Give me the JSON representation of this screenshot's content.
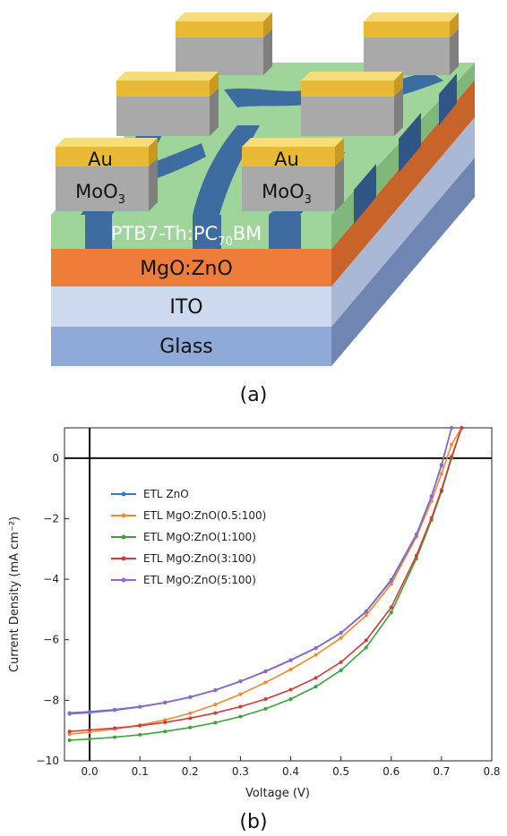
{
  "panel_a": {
    "caption": "(a)",
    "layers": {
      "au1": "Au",
      "moo3_1_base": "MoO",
      "moo3_1_sub": "3",
      "au2": "Au",
      "moo3_2_base": "MoO",
      "moo3_2_sub": "3",
      "active_pre": "PTB7-Th:PC",
      "active_sub": "70",
      "active_post": "BM",
      "etl": "MgO:ZnO",
      "ito": "ITO",
      "glass": "Glass"
    },
    "colors": {
      "au": "#e8b934",
      "moo3": "#a9a9a9",
      "active_green": "#9fd59a",
      "active_blue": "#3d6da0",
      "etl": "#ee7d3a",
      "ito": "#cdd9ec",
      "glass": "#8faad6"
    }
  },
  "panel_b": {
    "caption": "(b)",
    "chart_data": {
      "type": "line",
      "title": "",
      "xlabel": "Voltage (V)",
      "ylabel": "Current Density (mA cm⁻²)",
      "xlim": [
        -0.05,
        0.8
      ],
      "ylim": [
        -10,
        1
      ],
      "xticks": [
        0.0,
        0.1,
        0.2,
        0.3,
        0.4,
        0.5,
        0.6,
        0.7,
        0.8
      ],
      "xtick_labels": [
        "0.0",
        "0.1",
        "0.2",
        "0.3",
        "0.4",
        "0.5",
        "0.6",
        "0.7",
        "0.8"
      ],
      "yticks": [
        0,
        -2,
        -4,
        -6,
        -8,
        -10
      ],
      "ytick_labels": [
        "0",
        "−2",
        "−4",
        "−6",
        "−8",
        "−10"
      ],
      "legend_position": "upper-left",
      "x": [
        -0.04,
        0.0,
        0.05,
        0.1,
        0.15,
        0.2,
        0.25,
        0.3,
        0.35,
        0.4,
        0.45,
        0.5,
        0.55,
        0.6,
        0.65,
        0.68,
        0.7,
        0.72,
        0.74,
        0.76
      ],
      "series": [
        {
          "name": "ETL ZnO",
          "color": "#3b78c3",
          "values": [
            -8.42,
            -8.38,
            -8.31,
            -8.21,
            -8.07,
            -7.89,
            -7.66,
            -7.37,
            -7.04,
            -6.67,
            -6.27,
            -5.77,
            -5.06,
            -4.02,
            -2.52,
            -1.26,
            -0.22,
            1.0,
            null,
            null
          ]
        },
        {
          "name": "ETL MgO:ZnO(0.5:100)",
          "color": "#f08a2e",
          "values": [
            -9.12,
            -9.05,
            -8.95,
            -8.82,
            -8.65,
            -8.43,
            -8.14,
            -7.8,
            -7.41,
            -6.98,
            -6.5,
            -5.94,
            -5.2,
            -4.16,
            -2.6,
            -1.42,
            -0.52,
            0.45,
            1.0,
            null
          ]
        },
        {
          "name": "ETL MgO:ZnO(1:100)",
          "color": "#3ba33a",
          "values": [
            -9.32,
            -9.28,
            -9.22,
            -9.14,
            -9.03,
            -8.9,
            -8.74,
            -8.54,
            -8.28,
            -7.96,
            -7.55,
            -7.01,
            -6.26,
            -5.1,
            -3.32,
            -2.05,
            -1.1,
            0.0,
            1.0,
            null
          ]
        },
        {
          "name": "ETL MgO:ZnO(3:100)",
          "color": "#d43a3a",
          "values": [
            -9.03,
            -8.98,
            -8.92,
            -8.84,
            -8.73,
            -8.59,
            -8.42,
            -8.21,
            -7.96,
            -7.65,
            -7.26,
            -6.74,
            -6.02,
            -4.93,
            -3.22,
            -1.98,
            -1.05,
            0.05,
            1.0,
            null
          ]
        },
        {
          "name": "ETL MgO:ZnO(5:100)",
          "color": "#9565c9",
          "values": [
            -8.45,
            -8.41,
            -8.33,
            -8.22,
            -8.08,
            -7.9,
            -7.67,
            -7.38,
            -7.05,
            -6.68,
            -6.28,
            -5.78,
            -5.08,
            -4.05,
            -2.55,
            -1.28,
            -0.25,
            1.0,
            null,
            null
          ]
        }
      ]
    }
  }
}
